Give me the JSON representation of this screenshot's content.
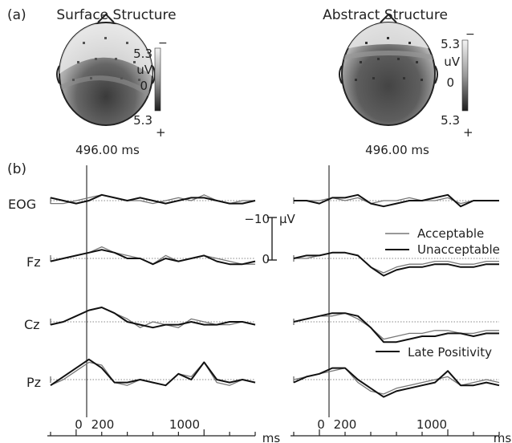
{
  "panel_a": {
    "label": "(a)",
    "maps": [
      {
        "title": "Surface Structure",
        "time": "496.00 ms",
        "scale": {
          "top": "5.3",
          "unit": "uV",
          "mid": "0",
          "bottom": "5.3",
          "minus": "−",
          "plus": "+"
        }
      },
      {
        "title": "Abstract Structure",
        "time": "496.00 ms",
        "scale": {
          "top": "5.3",
          "unit": "uV",
          "mid": "0",
          "bottom": "5.3",
          "minus": "−",
          "plus": "+"
        }
      }
    ]
  },
  "panel_b": {
    "label": "(b)",
    "channels": [
      "EOG",
      "Fz",
      "Cz",
      "Pz"
    ],
    "scale_bar": {
      "top": "−10",
      "unit": "μV",
      "bottom": "0"
    },
    "legend": [
      "Acceptable",
      "Unacceptable"
    ],
    "annotation": "Late Positivity",
    "time_axis": {
      "ticks": [
        "0",
        "200",
        "1000"
      ],
      "unit": "ms"
    }
  },
  "chart_data": {
    "type": "line",
    "x_unit": "ms",
    "x_range": [
      -200,
      1400
    ],
    "y_unit": "μV",
    "y_scale_bar": [
      -10,
      0
    ],
    "negative_up": true,
    "series_names": [
      "Acceptable",
      "Unacceptable"
    ],
    "colors": {
      "Acceptable": "#777777",
      "Unacceptable": "#111111"
    },
    "panels": [
      {
        "condition": "Surface Structure",
        "channels": {
          "EOG": {
            "x": [
              -200,
              -100,
              0,
              100,
              200,
              300,
              400,
              500,
              600,
              700,
              800,
              900,
              1000,
              1100,
              1200,
              1300,
              1400
            ],
            "Acceptable": [
              -1,
              -1,
              0,
              1,
              2,
              1,
              0,
              0,
              -1,
              0,
              1,
              0,
              2,
              0,
              -1,
              0,
              0
            ],
            "Unacceptable": [
              1,
              0,
              -1,
              0,
              2,
              1,
              0,
              1,
              0,
              -1,
              0,
              1,
              1,
              0,
              -1,
              -1,
              0
            ]
          },
          "Fz": {
            "x": [
              -200,
              -100,
              0,
              100,
              200,
              300,
              400,
              500,
              600,
              700,
              800,
              900,
              1000,
              1100,
              1200,
              1300,
              1400
            ],
            "Acceptable": [
              -1,
              0,
              1,
              2,
              4,
              2,
              1,
              0,
              -2,
              1,
              -1,
              0,
              1,
              0,
              -1,
              -2,
              -2
            ],
            "Unacceptable": [
              -1,
              0,
              1,
              2,
              3,
              2,
              0,
              0,
              -2,
              0,
              -1,
              0,
              1,
              -1,
              -2,
              -2,
              -1
            ]
          },
          "Cz": {
            "x": [
              -200,
              -100,
              0,
              100,
              200,
              300,
              400,
              500,
              600,
              700,
              800,
              900,
              1000,
              1100,
              1200,
              1300,
              1400
            ],
            "Acceptable": [
              -1,
              0,
              2,
              4,
              5,
              3,
              1,
              -2,
              0,
              -1,
              -2,
              1,
              0,
              -1,
              -1,
              0,
              -1
            ],
            "Unacceptable": [
              -1,
              0,
              2,
              4,
              5,
              3,
              0,
              -1,
              -2,
              -1,
              -1,
              0,
              -1,
              -1,
              0,
              0,
              -1
            ]
          },
          "Pz": {
            "x": [
              -200,
              -100,
              0,
              100,
              200,
              300,
              400,
              500,
              600,
              700,
              800,
              900,
              1000,
              1100,
              1200,
              1300,
              1400
            ],
            "Acceptable": [
              -2,
              0,
              3,
              6,
              5,
              -1,
              -2,
              0,
              -1,
              -2,
              2,
              1,
              6,
              -1,
              -2,
              0,
              -1
            ],
            "Unacceptable": [
              -2,
              1,
              4,
              7,
              4,
              -1,
              -1,
              0,
              -1,
              -2,
              2,
              0,
              6,
              0,
              -1,
              0,
              -1
            ]
          }
        }
      },
      {
        "condition": "Abstract Structure",
        "channels": {
          "EOG": {
            "x": [
              -200,
              -100,
              0,
              100,
              200,
              300,
              400,
              500,
              600,
              700,
              800,
              900,
              1000,
              1100,
              1200,
              1300,
              1400
            ],
            "Acceptable": [
              0,
              0,
              0,
              1,
              0,
              1,
              -1,
              0,
              0,
              1,
              0,
              0,
              1,
              -1,
              0,
              0,
              0
            ],
            "Unacceptable": [
              0,
              0,
              -1,
              1,
              1,
              2,
              -1,
              -2,
              -1,
              0,
              0,
              1,
              2,
              -2,
              0,
              0,
              0
            ]
          },
          "Fz": {
            "x": [
              -200,
              -100,
              0,
              100,
              200,
              300,
              400,
              500,
              600,
              700,
              800,
              900,
              1000,
              1100,
              1200,
              1300,
              1400
            ],
            "Acceptable": [
              0,
              0,
              1,
              2,
              2,
              1,
              -3,
              -5,
              -3,
              -2,
              -2,
              -1,
              -1,
              -2,
              -2,
              -1,
              -1
            ],
            "Unacceptable": [
              0,
              1,
              1,
              2,
              2,
              1,
              -3,
              -6,
              -4,
              -3,
              -3,
              -2,
              -2,
              -3,
              -3,
              -2,
              -2
            ]
          },
          "Cz": {
            "x": [
              -200,
              -100,
              0,
              100,
              200,
              300,
              400,
              500,
              600,
              700,
              800,
              900,
              1000,
              1100,
              1200,
              1300,
              1400
            ],
            "Acceptable": [
              0,
              1,
              2,
              2,
              3,
              1,
              -2,
              -6,
              -5,
              -4,
              -4,
              -3,
              -3,
              -4,
              -4,
              -3,
              -3
            ],
            "Unacceptable": [
              0,
              1,
              2,
              3,
              3,
              2,
              -2,
              -7,
              -7,
              -6,
              -5,
              -5,
              -4,
              -4,
              -5,
              -4,
              -4
            ]
          },
          "Pz": {
            "x": [
              -200,
              -100,
              0,
              100,
              200,
              300,
              400,
              500,
              600,
              700,
              800,
              900,
              1000,
              1100,
              1200,
              1300,
              1400
            ],
            "Acceptable": [
              0,
              1,
              2,
              3,
              4,
              -1,
              -4,
              -5,
              -3,
              -2,
              -1,
              0,
              1,
              -2,
              -1,
              0,
              -1
            ],
            "Unacceptable": [
              -1,
              1,
              2,
              4,
              4,
              0,
              -3,
              -6,
              -4,
              -3,
              -2,
              -1,
              3,
              -2,
              -2,
              -1,
              -2
            ]
          }
        }
      }
    ]
  }
}
